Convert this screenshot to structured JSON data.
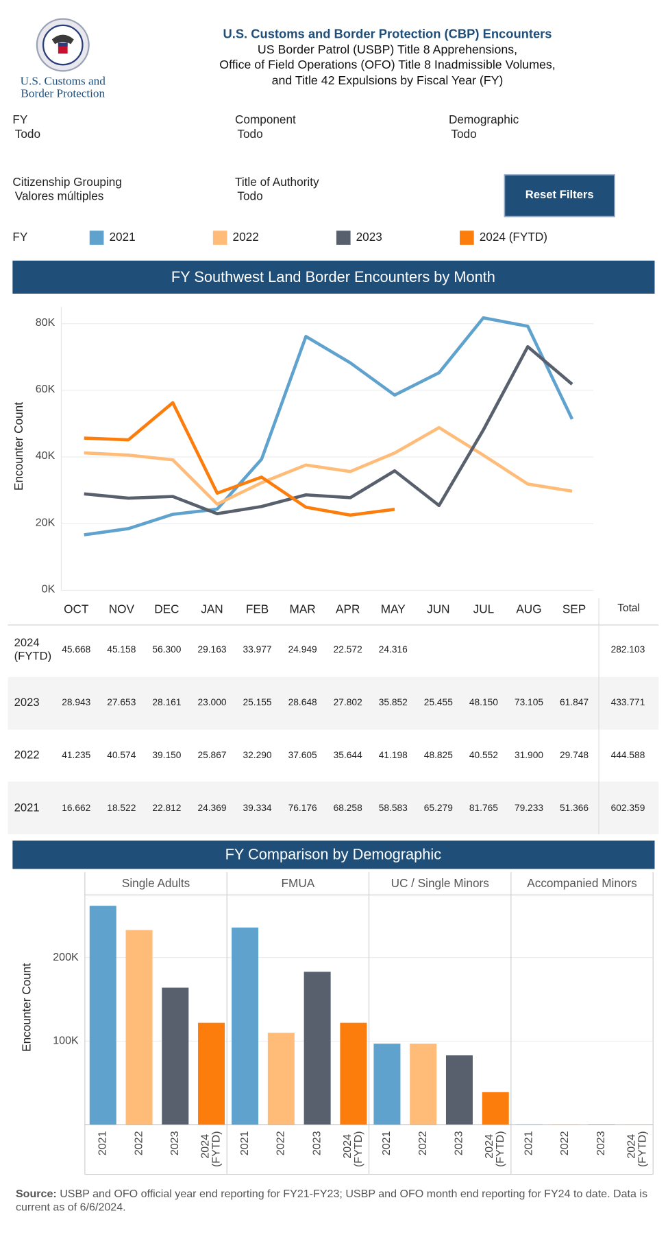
{
  "header": {
    "logo_line1": "U.S. Customs and",
    "logo_line2": "Border Protection",
    "title": "U.S. Customs and Border Protection (CBP) Encounters",
    "subtitle_lines": [
      "US Border Patrol (USBP) Title 8 Apprehensions,",
      "Office of Field Operations (OFO) Title 8 Inadmissible Volumes,",
      "and Title 42 Expulsions by Fiscal Year (FY)"
    ]
  },
  "filters": [
    {
      "label": "FY",
      "value": "Todo"
    },
    {
      "label": "Component",
      "value": "Todo"
    },
    {
      "label": "Demographic",
      "value": "Todo"
    },
    {
      "label": "Citizenship Grouping",
      "value": "Valores múltiples"
    },
    {
      "label": "Title of Authority",
      "value": "Todo"
    }
  ],
  "reset_button": "Reset Filters",
  "legend_title": "FY",
  "table": {
    "total_header": "Total"
  },
  "chart_data": [
    {
      "type": "line",
      "title": "FY Southwest Land Border Encounters by Month",
      "y_label": "Encounter Count",
      "categories": [
        "OCT",
        "NOV",
        "DEC",
        "JAN",
        "FEB",
        "MAR",
        "APR",
        "MAY",
        "JUN",
        "JUL",
        "AUG",
        "SEP"
      ],
      "ylim": [
        0,
        85000
      ],
      "yticks": [
        {
          "value": 0,
          "label": "0K"
        },
        {
          "value": 20000,
          "label": "20K"
        },
        {
          "value": 40000,
          "label": "40K"
        },
        {
          "value": 60000,
          "label": "60K"
        },
        {
          "value": 80000,
          "label": "80K"
        }
      ],
      "grid": true,
      "series": [
        {
          "name": "2021",
          "color": "#5fa2ce",
          "values": [
            16662,
            18522,
            22812,
            24369,
            39334,
            76176,
            68258,
            58583,
            65279,
            81765,
            79233,
            51366
          ],
          "value_labels": [
            "16.662",
            "18.522",
            "22.812",
            "24.369",
            "39.334",
            "76.176",
            "68.258",
            "58.583",
            "65.279",
            "81.765",
            "79.233",
            "51.366"
          ],
          "total": "602.359"
        },
        {
          "name": "2022",
          "color": "#ffbc79",
          "values": [
            41235,
            40574,
            39150,
            25867,
            32290,
            37605,
            35644,
            41198,
            48825,
            40552,
            31900,
            29748
          ],
          "value_labels": [
            "41.235",
            "40.574",
            "39.150",
            "25.867",
            "32.290",
            "37.605",
            "35.644",
            "41.198",
            "48.825",
            "40.552",
            "31.900",
            "29.748"
          ],
          "total": "444.588"
        },
        {
          "name": "2023",
          "color": "#57606c",
          "values": [
            28943,
            27653,
            28161,
            23000,
            25155,
            28648,
            27802,
            35852,
            25455,
            48150,
            73105,
            61847
          ],
          "value_labels": [
            "28.943",
            "27.653",
            "28.161",
            "23.000",
            "25.155",
            "28.648",
            "27.802",
            "35.852",
            "25.455",
            "48.150",
            "73.105",
            "61.847"
          ],
          "total": "433.771"
        },
        {
          "name": "2024 (FYTD)",
          "color": "#fc7d0b",
          "values": [
            45668,
            45158,
            56300,
            29163,
            33977,
            24949,
            22572,
            24316,
            null,
            null,
            null,
            null
          ],
          "value_labels": [
            "45.668",
            "45.158",
            "56.300",
            "29.163",
            "33.977",
            "24.949",
            "22.572",
            "24.316",
            null,
            null,
            null,
            null
          ],
          "total": "282.103"
        }
      ]
    },
    {
      "type": "bar_panels",
      "title": "FY Comparison by Demographic",
      "y_label": "Encounter Count",
      "categories": [
        "2021",
        "2022",
        "2023",
        "2024 (FYTD)"
      ],
      "colors": [
        "#5fa2ce",
        "#ffbc79",
        "#57606c",
        "#fc7d0b"
      ],
      "ylim": [
        0,
        275000
      ],
      "yticks": [
        {
          "value": 100000,
          "label": "100K"
        },
        {
          "value": 200000,
          "label": "200K"
        }
      ],
      "grid": true,
      "panels": [
        {
          "name": "Single Adults",
          "values": [
            262000,
            233000,
            164000,
            122000
          ]
        },
        {
          "name": "FMUA",
          "values": [
            236000,
            110000,
            183000,
            122000
          ]
        },
        {
          "name": "UC / Single Minors",
          "values": [
            97000,
            97000,
            83000,
            39000
          ]
        },
        {
          "name": "Accompanied Minors",
          "values": [
            500,
            500,
            500,
            300
          ]
        }
      ]
    }
  ],
  "source": {
    "label": "Source:",
    "text": "USBP and OFO official year end reporting for FY21-FY23; USBP and OFO month end reporting for FY24 to date. Data is current as of 6/6/2024."
  }
}
